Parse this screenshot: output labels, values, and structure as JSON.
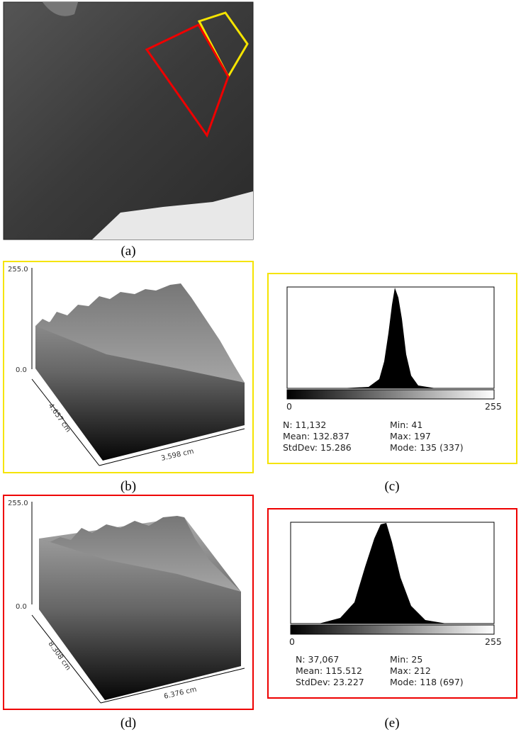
{
  "photo": {
    "label": "(a)"
  },
  "yellow_surface": {
    "label": "(b)",
    "z_max": "255.0",
    "z_min": "0.0",
    "depth": "4.657 cm",
    "width": "3.598 cm"
  },
  "yellow_histogram": {
    "label": "(c)",
    "x_min": "0",
    "x_max": "255",
    "stats": [
      [
        "N: 11,132",
        "Min: 41"
      ],
      [
        "Mean: 132.837",
        "Max: 197"
      ],
      [
        "StdDev: 15.286",
        "Mode: 135 (337)"
      ]
    ]
  },
  "red_surface": {
    "label": "(d)",
    "z_max": "255.0",
    "z_min": "0.0",
    "depth": "8.308 cm",
    "width": "6.376 cm"
  },
  "red_histogram": {
    "label": "(e)",
    "x_min": "0",
    "x_max": "255",
    "stats": [
      [
        "N: 37,067",
        "Min: 25"
      ],
      [
        "Mean: 115.512",
        "Max: 212"
      ],
      [
        "StdDev: 23.227",
        "Mode: 118 (697)"
      ]
    ]
  }
}
